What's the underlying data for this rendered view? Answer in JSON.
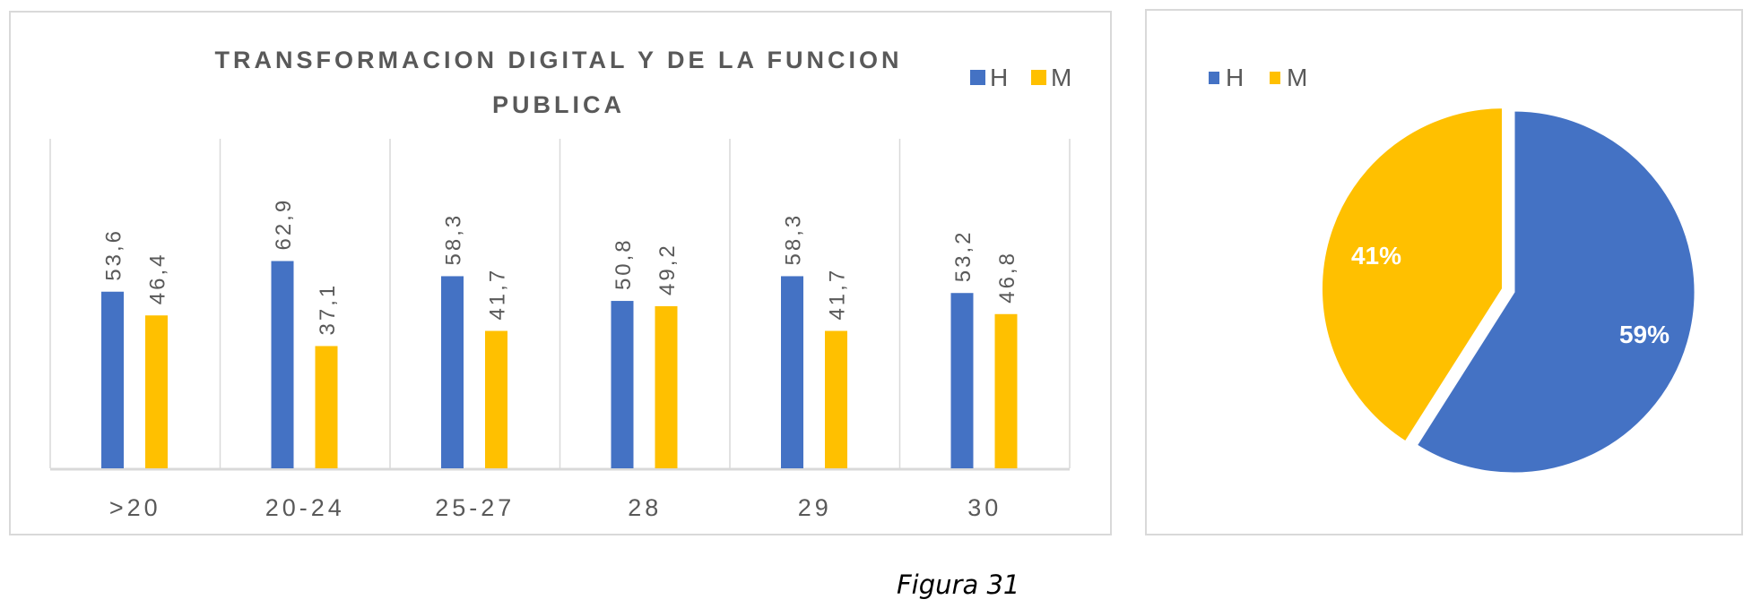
{
  "chart_data": [
    {
      "type": "bar",
      "title": "TRANSFORMACION DIGITAL Y DE LA FUNCION PUBLICA",
      "title_lines": [
        "TRANSFORMACION DIGITAL Y DE LA FUNCION",
        "PUBLICA"
      ],
      "categories": [
        ">20",
        "20-24",
        "25-27",
        "28",
        "29",
        "30"
      ],
      "series": [
        {
          "name": "H",
          "color": "#4472C4",
          "values": [
            53.6,
            62.9,
            58.3,
            50.8,
            58.3,
            53.2
          ],
          "labels": [
            "53,6",
            "62,9",
            "58,3",
            "50,8",
            "58,3",
            "53,2"
          ]
        },
        {
          "name": "M",
          "color": "#FFC000",
          "values": [
            46.4,
            37.1,
            41.7,
            49.2,
            41.7,
            46.8
          ],
          "labels": [
            "46,4",
            "37,1",
            "41,7",
            "49,2",
            "41,7",
            "46,8"
          ]
        }
      ],
      "ylim": [
        0,
        100
      ],
      "grid": "vertical category separators",
      "legend": "top-right"
    },
    {
      "type": "pie",
      "slices": [
        {
          "name": "H",
          "value": 59,
          "label": "59%",
          "color": "#4472C4"
        },
        {
          "name": "M",
          "value": 41,
          "label": "41%",
          "color": "#FFC000"
        }
      ],
      "legend": "top-left"
    }
  ],
  "caption": "Figura 31"
}
